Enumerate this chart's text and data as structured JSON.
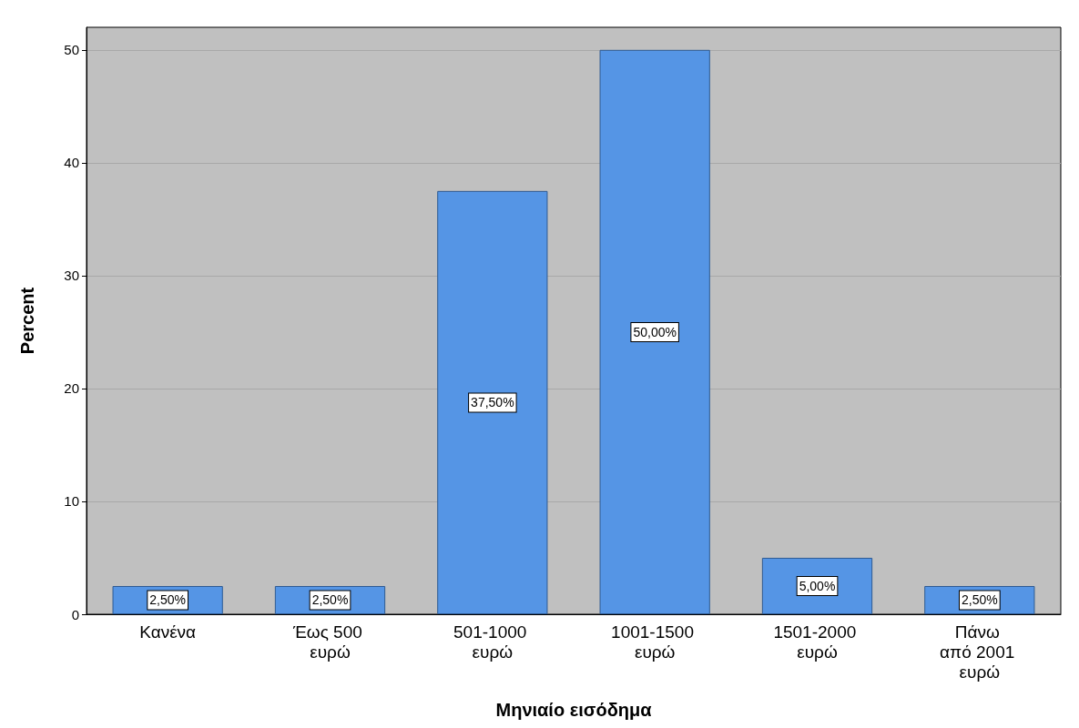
{
  "chart_data": {
    "type": "bar",
    "xlabel": "Μηνιαίο εισόδημα",
    "ylabel": "Percent",
    "categories": [
      "Κανένα",
      "Έως 500 ευρώ",
      "501-1000 ευρώ",
      "1001-1500 ευρώ",
      "1501-2000 ευρώ",
      "Πάνω από 2001 ευρώ"
    ],
    "values": [
      2.5,
      2.5,
      37.5,
      50,
      5,
      2.5
    ],
    "value_labels": [
      "2,50%",
      "2,50%",
      "37,50%",
      "50,00%",
      "5,00%",
      "2,50%"
    ],
    "color": "#5595e5",
    "ylim": [
      0,
      52
    ],
    "yticks": [
      0,
      10,
      20,
      30,
      40,
      50
    ],
    "grid": "y"
  }
}
